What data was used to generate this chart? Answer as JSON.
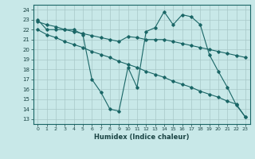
{
  "xlabel": "Humidex (Indice chaleur)",
  "background_color": "#c8e8e8",
  "grid_color": "#a8c8c8",
  "line_color": "#1a6666",
  "xlim": [
    -0.5,
    23.5
  ],
  "ylim": [
    12.5,
    24.5
  ],
  "yticks": [
    13,
    14,
    15,
    16,
    17,
    18,
    19,
    20,
    21,
    22,
    23,
    24
  ],
  "xticks": [
    0,
    1,
    2,
    3,
    4,
    5,
    6,
    7,
    8,
    9,
    10,
    11,
    12,
    13,
    14,
    15,
    16,
    17,
    18,
    19,
    20,
    21,
    22,
    23
  ],
  "line1_x": [
    0,
    1,
    2,
    3,
    4,
    5,
    6,
    7,
    8,
    9,
    10,
    11,
    12,
    13,
    14,
    15,
    16,
    17,
    18,
    19,
    20,
    21,
    22,
    23
  ],
  "line1_y": [
    23,
    22,
    22,
    22,
    22,
    21.5,
    17,
    15.7,
    14.0,
    13.8,
    18.2,
    16.2,
    21.8,
    22.2,
    23.8,
    22.5,
    23.5,
    23.3,
    22.5,
    19.5,
    17.8,
    16.2,
    14.4,
    13.2
  ],
  "line2_x": [
    0,
    1,
    2,
    3,
    4,
    5,
    6,
    7,
    8,
    9,
    10,
    11,
    12,
    13,
    14,
    15,
    16,
    17,
    18,
    19,
    20,
    21,
    22,
    23
  ],
  "line2_y": [
    22.8,
    22.5,
    22.3,
    22.0,
    21.8,
    21.6,
    21.4,
    21.2,
    21.0,
    20.8,
    21.3,
    21.2,
    21.0,
    21.0,
    21.0,
    20.8,
    20.6,
    20.4,
    20.2,
    20.0,
    19.8,
    19.6,
    19.4,
    19.2
  ],
  "line3_x": [
    0,
    1,
    2,
    3,
    4,
    5,
    6,
    7,
    8,
    9,
    10,
    11,
    12,
    13,
    14,
    15,
    16,
    17,
    18,
    19,
    20,
    21,
    22,
    23
  ],
  "line3_y": [
    22.0,
    21.5,
    21.2,
    20.8,
    20.5,
    20.2,
    19.8,
    19.5,
    19.2,
    18.8,
    18.5,
    18.2,
    17.8,
    17.5,
    17.2,
    16.8,
    16.5,
    16.2,
    15.8,
    15.5,
    15.2,
    14.8,
    14.5,
    13.2
  ]
}
